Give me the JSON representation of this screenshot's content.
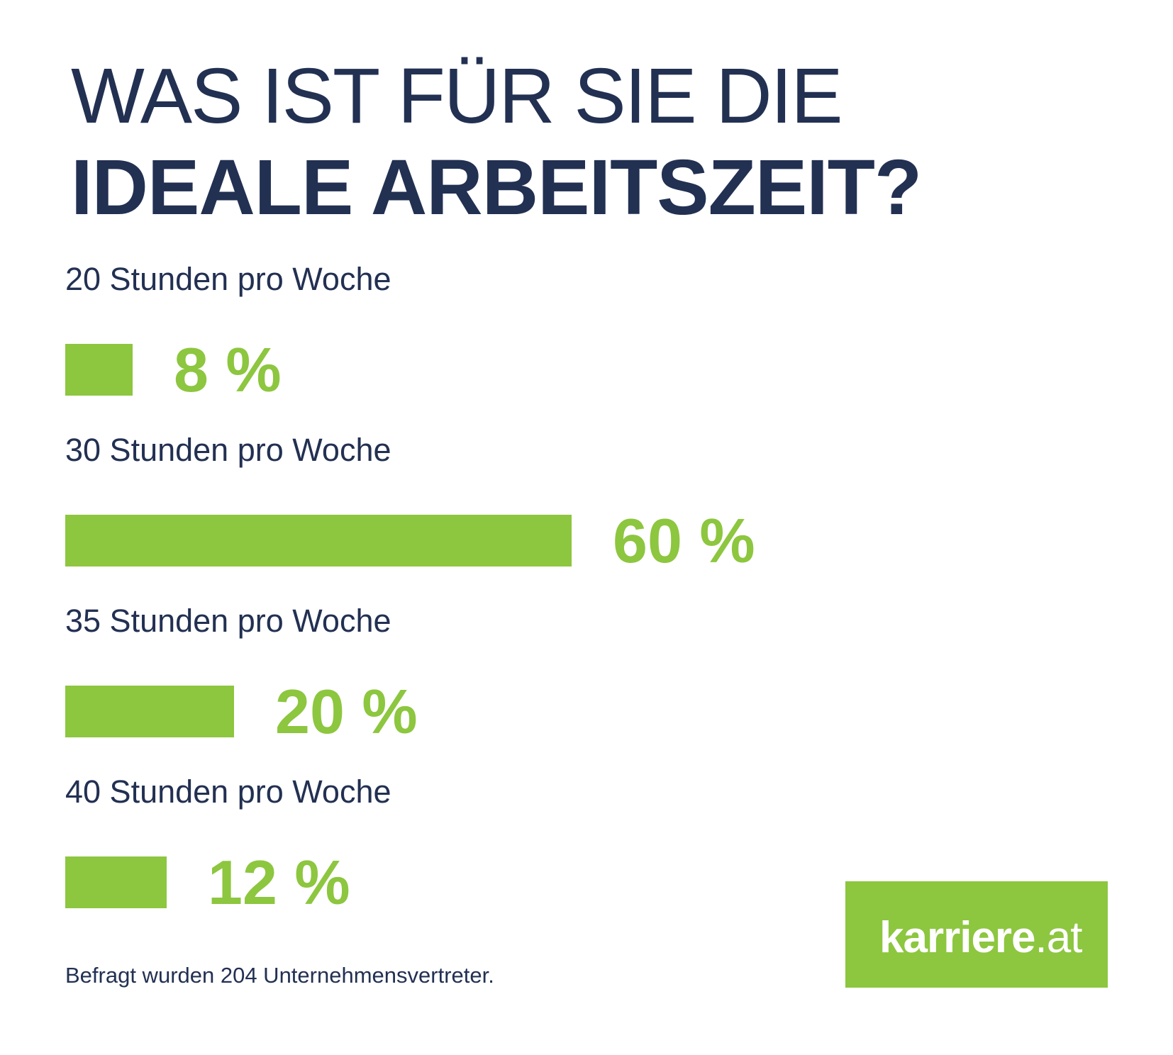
{
  "title": {
    "line1": "WAS IST FÜR SIE DIE",
    "line2": "IDEALE ARBEITSZEIT?"
  },
  "chart_data": {
    "type": "bar",
    "orientation": "horizontal",
    "title": "WAS IST FÜR SIE DIE IDEALE ARBEITSZEIT?",
    "categories": [
      "20 Stunden pro Woche",
      "30 Stunden pro Woche",
      "35 Stunden pro Woche",
      "40 Stunden pro Woche"
    ],
    "values": [
      8,
      60,
      20,
      12
    ],
    "value_labels": [
      "8 %",
      "60 %",
      "20 %",
      "12 %"
    ],
    "unit": "%",
    "xlim": [
      0,
      100
    ],
    "grid": false,
    "axis_visible": false,
    "bar_color": "#8DC63F",
    "category_label_color": "#223052",
    "value_label_color": "#8DC63F"
  },
  "footer": {
    "note": "Befragt wurden 204 Unternehmensvertreter."
  },
  "logo": {
    "text_bold": "karriere",
    "text_light": ".at",
    "bg_color": "#8DC63F",
    "text_color": "#FFFFFF"
  },
  "colors": {
    "navy": "#223052",
    "green": "#8DC63F",
    "background": "#FFFFFF"
  }
}
